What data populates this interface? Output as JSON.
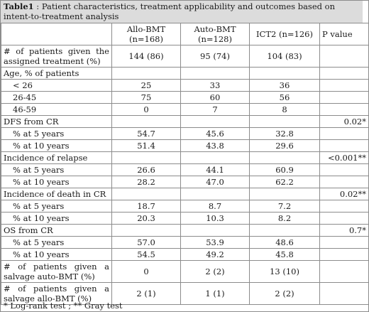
{
  "caption": {
    "label": "Table1",
    "text": " : Patient characteristics, treatment applicability and outcomes based on intent-to-treatment analysis"
  },
  "headers": {
    "blank": "",
    "allo": "Allo-BMT (n=168)",
    "auto": "Auto-BMT (n=128)",
    "ict2": "ICT2 (n=126)",
    "pvalue": "P value"
  },
  "rows": [
    {
      "label": "# of patients given the assigned treatment (%)",
      "allo": "144 (86)",
      "auto": "95 (74)",
      "ict2": "104 (83)",
      "p": ""
    },
    {
      "label": "Age, % of patients",
      "allo": "",
      "auto": "",
      "ict2": "",
      "p": ""
    },
    {
      "label": "< 26",
      "allo": "25",
      "auto": "33",
      "ict2": "36",
      "p": ""
    },
    {
      "label": "26-45",
      "allo": "75",
      "auto": "60",
      "ict2": "56",
      "p": ""
    },
    {
      "label": "46-59",
      "allo": "0",
      "auto": "7",
      "ict2": "8",
      "p": ""
    },
    {
      "label": "DFS from CR",
      "allo": "",
      "auto": "",
      "ict2": "",
      "p": "0.02*"
    },
    {
      "label": "% at 5 years",
      "allo": "54.7",
      "auto": "45.6",
      "ict2": "32.8",
      "p": ""
    },
    {
      "label": "% at 10 years",
      "allo": "51.4",
      "auto": "43.8",
      "ict2": "29.6",
      "p": ""
    },
    {
      "label": "Incidence of relapse",
      "allo": "",
      "auto": "",
      "ict2": "",
      "p": "<0.001**"
    },
    {
      "label": "% at 5 years",
      "allo": "26.6",
      "auto": "44.1",
      "ict2": "60.9",
      "p": ""
    },
    {
      "label": "% at 10 years",
      "allo": "28.2",
      "auto": "47.0",
      "ict2": "62.2",
      "p": ""
    },
    {
      "label": "Incidence of death in CR",
      "allo": "",
      "auto": "",
      "ict2": "",
      "p": "0.02**"
    },
    {
      "label": "% at 5 years",
      "allo": "18.7",
      "auto": "8.7",
      "ict2": "7.2",
      "p": ""
    },
    {
      "label": "% at 10 years",
      "allo": "20.3",
      "auto": "10.3",
      "ict2": "8.2",
      "p": ""
    },
    {
      "label": "OS from CR",
      "allo": "",
      "auto": "",
      "ict2": "",
      "p": "0.7*"
    },
    {
      "label": "% at 5 years",
      "allo": "57.0",
      "auto": "53.9",
      "ict2": "48.6",
      "p": ""
    },
    {
      "label": "% at 10 years",
      "allo": "54.5",
      "auto": "49.2",
      "ict2": "45.8",
      "p": ""
    },
    {
      "label": "# of patients given a salvage auto-BMT (%)",
      "allo": "0",
      "auto": "2 (2)",
      "ict2": "13 (10)",
      "p": ""
    },
    {
      "label": "# of patients given a salvage allo-BMT (%)",
      "allo": "2 (1)",
      "auto": "1 (1)",
      "ict2": "2 (2)",
      "p": ""
    }
  ],
  "footnote": "* Log-rank test ; ** Gray test"
}
